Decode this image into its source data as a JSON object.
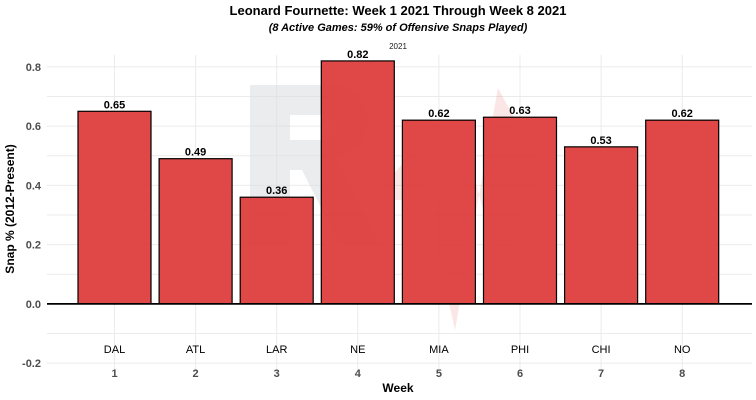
{
  "chart_data": {
    "type": "bar",
    "title": "Leonard Fournette: Week 1 2021 Through Week 8 2021",
    "subtitle": "(8 Active Games: 59% of Offensive Snaps Played)",
    "facet_label": "2021",
    "xlabel": "Week",
    "ylabel": "Snap % (2012-Present)",
    "categories": [
      "1",
      "2",
      "3",
      "4",
      "5",
      "6",
      "7",
      "8"
    ],
    "opponents": [
      "DAL",
      "ATL",
      "LAR",
      "NE",
      "MIA",
      "PHI",
      "CHI",
      "NO"
    ],
    "values": [
      0.65,
      0.49,
      0.36,
      0.82,
      0.62,
      0.63,
      0.53,
      0.62
    ],
    "value_labels": [
      "0.65",
      "0.49",
      "0.36",
      "0.82",
      "0.62",
      "0.63",
      "0.53",
      "0.62"
    ],
    "ylim": [
      -0.2,
      0.8
    ],
    "yticks": [
      -0.2,
      0.0,
      0.2,
      0.4,
      0.6,
      0.8
    ],
    "ytick_labels": [
      "-0.2",
      "0.0",
      "0.2",
      "0.4",
      "0.6",
      "0.8"
    ],
    "grid": true,
    "bar_color": "#de3a3a",
    "watermark_colors": [
      "#d9dce0",
      "#e23a3a"
    ]
  }
}
